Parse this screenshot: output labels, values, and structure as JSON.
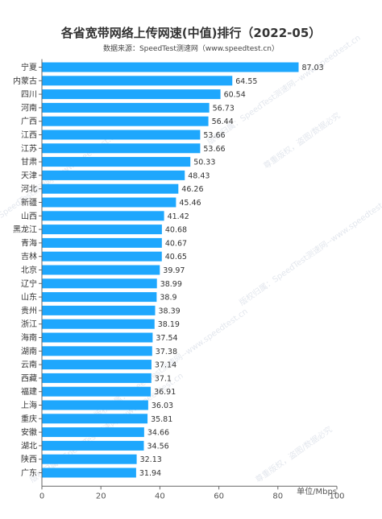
{
  "chart_data": {
    "type": "bar",
    "orientation": "horizontal",
    "title": "各省宽带网络上传网速(中值)排行（2022-05）",
    "subtitle": "数据来源：SpeedTest测速网（www.speedtest.cn）",
    "unit_label": "单位/Mbps",
    "categories": [
      "宁夏",
      "内蒙古",
      "四川",
      "河南",
      "广西",
      "江西",
      "江苏",
      "甘肃",
      "天津",
      "河北",
      "新疆",
      "山西",
      "黑龙江",
      "青海",
      "吉林",
      "北京",
      "辽宁",
      "山东",
      "贵州",
      "浙江",
      "海南",
      "湖南",
      "云南",
      "西藏",
      "福建",
      "上海",
      "重庆",
      "安徽",
      "湖北",
      "陕西",
      "广东"
    ],
    "values": [
      87.03,
      64.55,
      60.54,
      56.73,
      56.44,
      53.66,
      53.66,
      50.33,
      48.43,
      46.26,
      45.46,
      41.42,
      40.68,
      40.67,
      40.65,
      39.97,
      38.99,
      38.9,
      38.39,
      38.19,
      37.54,
      37.38,
      37.14,
      37.1,
      36.91,
      36.03,
      35.81,
      34.66,
      34.56,
      32.13,
      31.94
    ],
    "value_labels": [
      "87.03",
      "64.55",
      "60.54",
      "56.73",
      "56.44",
      "53.66",
      "53.66",
      "50.33",
      "48.43",
      "46.26",
      "45.46",
      "41.42",
      "40.68",
      "40.67",
      "40.65",
      "39.97",
      "38.99",
      "38.9",
      "38.39",
      "38.19",
      "37.54",
      "37.38",
      "37.14",
      "37.1",
      "36.91",
      "36.03",
      "35.81",
      "34.66",
      "34.56",
      "32.13",
      "31.94"
    ],
    "xlim": [
      0,
      100
    ],
    "x_ticks": [
      "0",
      "20",
      "40",
      "60",
      "80",
      "100"
    ],
    "bar_color": "#1ea7fd",
    "grid": false
  },
  "watermark": {
    "text_a": "版权归属：SpeedTest测速网--www.speedtest.cn",
    "text_b": "尊重版权，盗图/数据必究"
  }
}
